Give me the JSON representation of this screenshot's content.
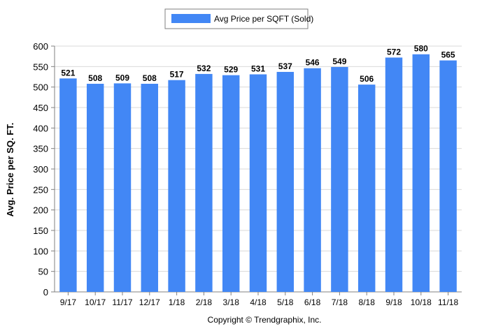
{
  "chart_data": {
    "type": "bar",
    "legend": {
      "label": "Avg Price per SQFT (Sold)",
      "placement": "top-center"
    },
    "ylabel": "Avg. Price per SQ. FT.",
    "xlabel": "",
    "ylim": [
      0,
      600
    ],
    "yticks": [
      0,
      50,
      100,
      150,
      200,
      250,
      300,
      350,
      400,
      450,
      500,
      550,
      600
    ],
    "grid": true,
    "categories": [
      "9/17",
      "10/17",
      "11/17",
      "12/17",
      "1/18",
      "2/18",
      "3/18",
      "4/18",
      "5/18",
      "6/18",
      "7/18",
      "8/18",
      "9/18",
      "10/18",
      "11/18"
    ],
    "series": [
      {
        "name": "Avg Price per SQFT (Sold)",
        "values": [
          521,
          508,
          509,
          508,
          517,
          532,
          529,
          531,
          537,
          546,
          549,
          506,
          572,
          580,
          565
        ]
      }
    ],
    "bar_color": "#4287f5",
    "footer": "Copyright © Trendgraphix, Inc."
  }
}
